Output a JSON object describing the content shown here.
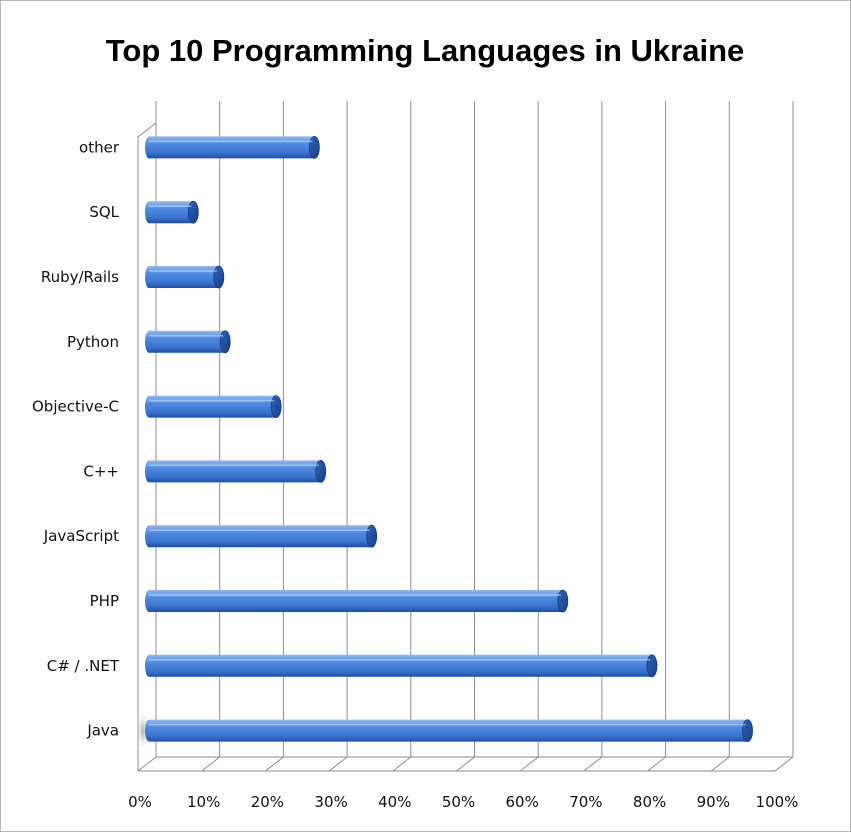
{
  "chart_data": {
    "type": "bar",
    "orientation": "horizontal",
    "title": "Top 10 Programming Languages in Ukraine",
    "categories": [
      "other",
      "SQL",
      "Ruby/Rails",
      "Python",
      "Objective-C",
      "C++",
      "JavaScript",
      "PHP",
      "C# / .NET",
      "Java"
    ],
    "values": [
      28,
      9,
      13,
      14,
      22,
      29,
      37,
      67,
      81,
      96
    ],
    "value_unit": "%",
    "xlim": [
      0,
      100
    ],
    "xticks": [
      "0%",
      "10%",
      "20%",
      "30%",
      "40%",
      "50%",
      "60%",
      "70%",
      "80%",
      "90%",
      "100%"
    ],
    "grid": "vertical",
    "legend": "none",
    "colors": {
      "bar": "#4a86e0",
      "bar_dark": "#1e4fa3",
      "grid": "#8c8c8c"
    }
  }
}
